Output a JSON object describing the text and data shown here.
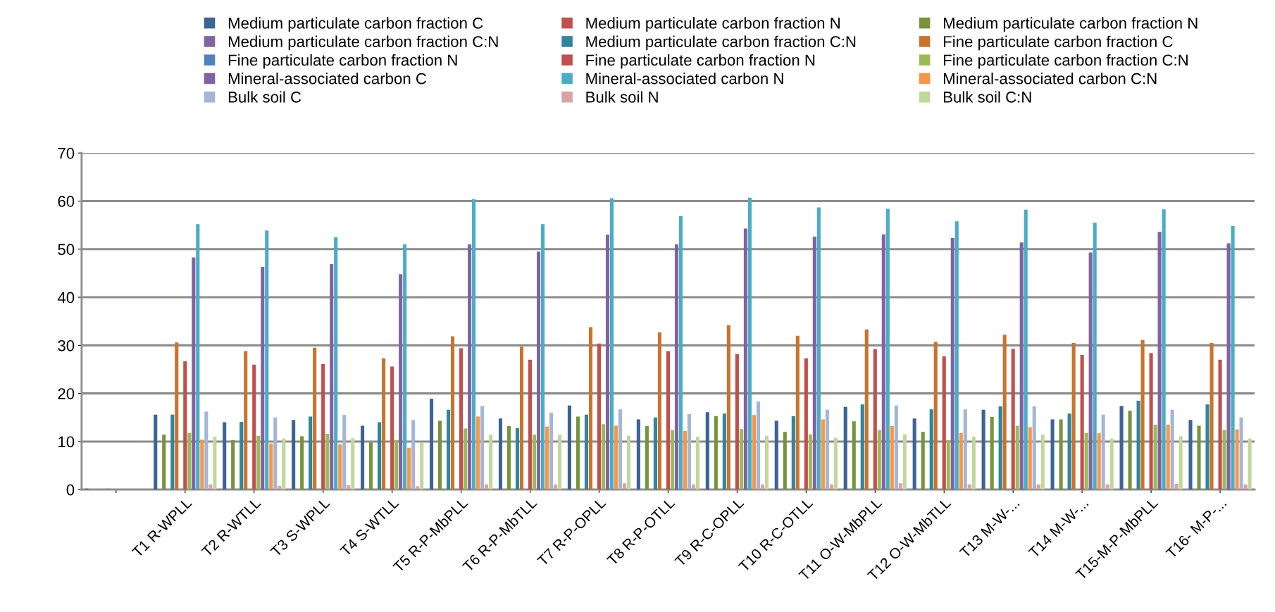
{
  "chart_data": {
    "type": "bar",
    "categories": [
      null,
      "T1 R-WPLL",
      "T2 R-WTLL",
      "T3 S-WPLL",
      "T4 S-WTLL",
      "T5 R-P-MbPLL",
      "T6 R-P-MbTLL",
      "T7 R-P-OPLL",
      "T8 R-P-OTLL",
      "T9 R-C-OPLL",
      "T10 R-C-OTLL",
      "T11 O-W-MbPLL",
      "T12 O-W-MbTLL",
      "T13 M-W-...",
      "T14 M-W-...",
      "T15-M-P-MbPLL",
      "T16- M-P-..."
    ],
    "series": [
      {
        "name": "Medium particulate carbon fraction C",
        "color": "#3c6496",
        "values": [
          0.2,
          15.6,
          14.0,
          14.5,
          13.3,
          18.9,
          14.8,
          17.5,
          14.6,
          16.1,
          14.3,
          17.2,
          14.8,
          16.6,
          14.6,
          17.4,
          14.5
        ]
      },
      {
        "name": "Medium particulate carbon fraction N",
        "color": "#c0504d",
        "values": [
          null,
          null,
          null,
          null,
          null,
          null,
          null,
          null,
          null,
          null,
          null,
          null,
          null,
          null,
          null,
          null,
          null
        ]
      },
      {
        "name": "Medium particulate carbon fraction N",
        "color": "#77933c",
        "values": [
          null,
          11.4,
          10.3,
          11.1,
          9.8,
          14.3,
          13.2,
          15.2,
          13.2,
          15.3,
          12.0,
          14.2,
          12.0,
          15.1,
          14.6,
          16.4,
          13.3
        ]
      },
      {
        "name": "Medium particulate carbon fraction C:N",
        "color": "#8064a2",
        "values": [
          null,
          null,
          null,
          null,
          null,
          null,
          null,
          null,
          null,
          null,
          null,
          null,
          null,
          null,
          null,
          null,
          null
        ]
      },
      {
        "name": "Medium particulate carbon fraction C:N",
        "color": "#31859c",
        "values": [
          null,
          15.6,
          14.1,
          15.2,
          14.0,
          16.6,
          12.8,
          15.6,
          15.0,
          15.8,
          15.3,
          17.7,
          16.7,
          17.3,
          15.8,
          18.5,
          17.7
        ]
      },
      {
        "name": "Fine particulate carbon fraction C",
        "color": "#c8742d",
        "values": [
          0.2,
          30.6,
          28.8,
          29.5,
          27.3,
          31.9,
          29.7,
          33.8,
          32.7,
          34.2,
          32.0,
          33.3,
          30.7,
          32.2,
          30.5,
          31.1,
          30.5
        ]
      },
      {
        "name": "Fine particulate carbon fraction N",
        "color": "#4f81bd",
        "values": [
          null,
          null,
          null,
          null,
          null,
          null,
          null,
          null,
          null,
          null,
          null,
          null,
          null,
          null,
          null,
          null,
          null
        ]
      },
      {
        "name": "Fine particulate carbon fraction N",
        "color": "#c0504d",
        "values": [
          null,
          26.7,
          26.0,
          26.1,
          25.6,
          29.4,
          27.0,
          30.4,
          28.8,
          28.2,
          27.3,
          29.2,
          27.7,
          29.3,
          28.0,
          28.4,
          27.0
        ]
      },
      {
        "name": "Fine particulate carbon fraction C:N",
        "color": "#9bbb59",
        "values": [
          null,
          11.8,
          11.2,
          11.6,
          10.3,
          12.7,
          11.4,
          13.6,
          12.4,
          12.6,
          11.5,
          12.4,
          10.3,
          13.3,
          11.8,
          13.5,
          12.4
        ]
      },
      {
        "name": "Mineral-associated carbon C",
        "color": "#8064a2",
        "values": [
          null,
          48.3,
          46.3,
          46.9,
          44.8,
          51.0,
          49.5,
          53.0,
          51.0,
          54.3,
          52.6,
          53.1,
          52.3,
          51.4,
          49.3,
          53.6,
          51.2
        ]
      },
      {
        "name": "Mineral-associated carbon N",
        "color": "#4bacc6",
        "values": [
          null,
          55.2,
          53.9,
          52.5,
          51.0,
          60.4,
          55.2,
          60.6,
          56.9,
          60.7,
          58.7,
          58.4,
          55.8,
          58.2,
          55.5,
          58.3,
          54.8
        ]
      },
      {
        "name": "Mineral-associated carbon C:N",
        "color": "#f79646",
        "values": [
          null,
          10.4,
          9.6,
          9.4,
          8.7,
          15.2,
          13.1,
          13.3,
          12.2,
          15.5,
          14.6,
          13.2,
          11.8,
          13.0,
          11.7,
          13.5,
          12.5
        ]
      },
      {
        "name": "Bulk soil C",
        "color": "#a5b6d5",
        "values": [
          null,
          16.2,
          15.0,
          15.5,
          14.5,
          17.4,
          16.0,
          16.7,
          15.7,
          18.3,
          16.6,
          17.5,
          16.7,
          17.3,
          15.6,
          16.6,
          15.0
        ]
      },
      {
        "name": "Bulk soil N",
        "color": "#d9a3a3",
        "values": [
          null,
          1.1,
          0.8,
          0.9,
          0.7,
          1.1,
          1.1,
          1.3,
          1.1,
          1.1,
          1.1,
          1.3,
          1.1,
          1.1,
          1.1,
          1.2,
          1.1
        ]
      },
      {
        "name": "Bulk soil C:N",
        "color": "#c3d69b",
        "values": [
          null,
          11.0,
          10.6,
          10.7,
          9.8,
          11.4,
          11.4,
          11.2,
          11.0,
          11.2,
          10.8,
          11.5,
          11.0,
          11.4,
          10.6,
          11.1,
          10.6
        ]
      }
    ],
    "ylim": [
      0,
      70
    ],
    "yticks": [
      0,
      10,
      20,
      30,
      40,
      50,
      60,
      70
    ],
    "grid": "y",
    "legend": "top"
  }
}
